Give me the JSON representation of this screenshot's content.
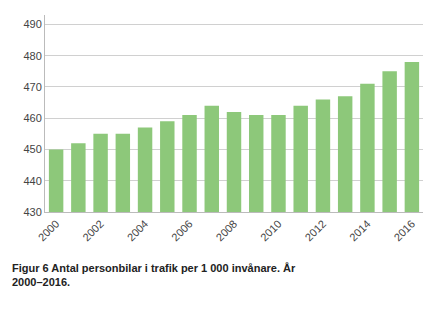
{
  "chart_data": {
    "type": "bar",
    "categories": [
      "2000",
      null,
      "2002",
      null,
      "2004",
      null,
      "2006",
      null,
      "2008",
      null,
      "2010",
      null,
      "2012",
      null,
      "2014",
      null,
      "2016"
    ],
    "values": [
      450,
      452,
      455,
      455,
      457,
      459,
      461,
      464,
      462,
      461,
      461,
      464,
      466,
      467,
      471,
      475,
      478
    ],
    "color": "#8dc87a",
    "ylim": [
      430,
      493
    ],
    "yticks": [
      430,
      440,
      450,
      460,
      470,
      480,
      490
    ],
    "grid": true,
    "annotations": [
      "Figur 6 Antal personbilar i trafik per 1 000 invånare. År",
      "2000–2016."
    ]
  }
}
